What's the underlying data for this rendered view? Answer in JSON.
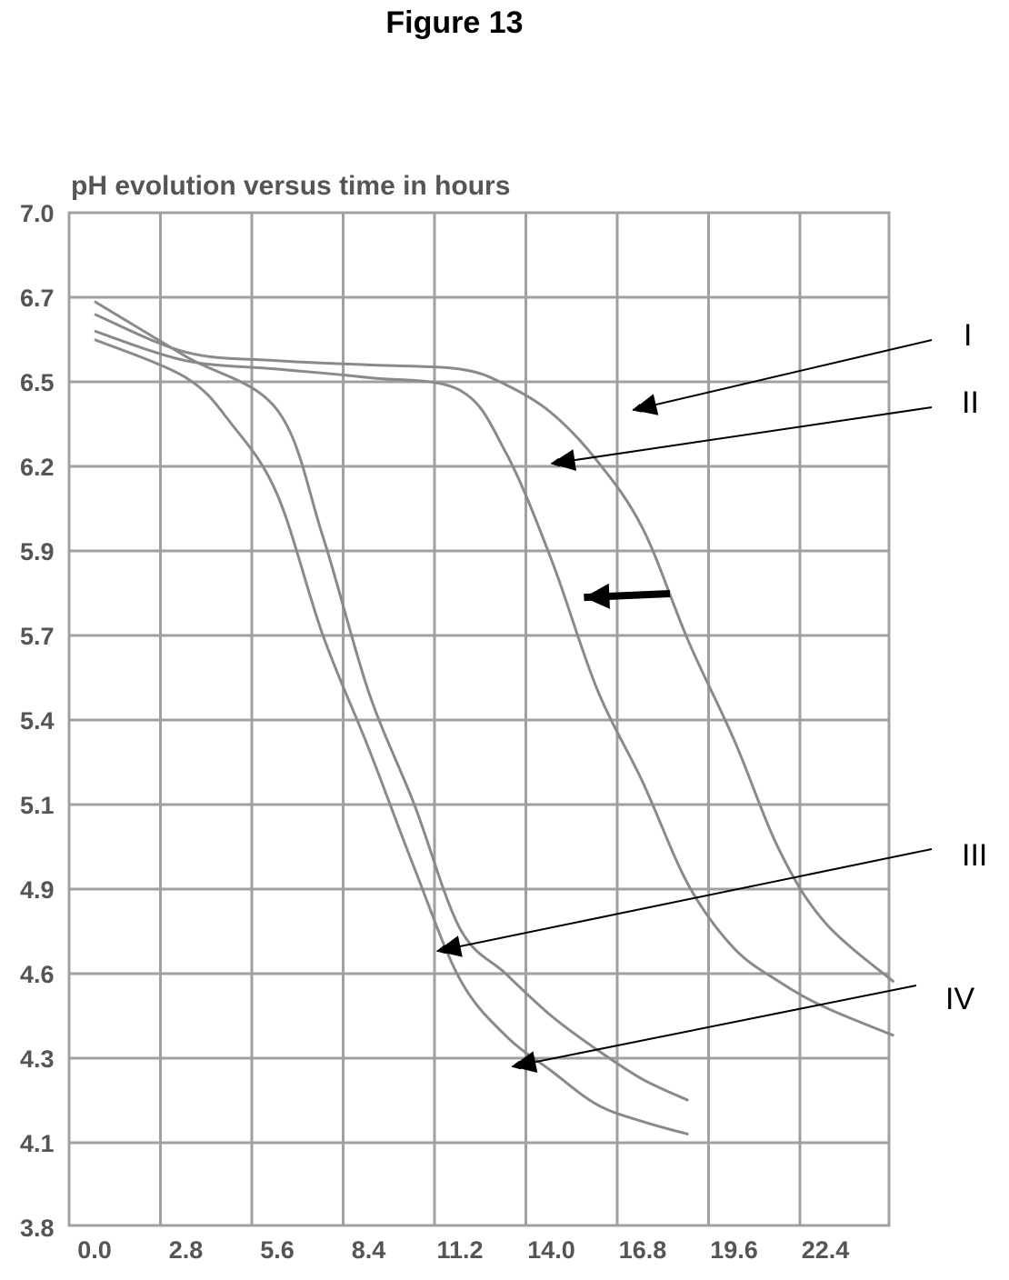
{
  "figure_title": "Figure 13",
  "chart_data": {
    "type": "line",
    "title": "pH evolution versus time in hours",
    "xlabel": "",
    "ylabel": "",
    "x_ticks": [
      "0.0",
      "2.8",
      "5.6",
      "8.4",
      "11.2",
      "14.0",
      "16.8",
      "19.6",
      "22.4"
    ],
    "y_ticks": [
      "7.0",
      "6.7",
      "6.5",
      "6.2",
      "5.9",
      "5.7",
      "5.4",
      "5.1",
      "4.9",
      "4.6",
      "4.3",
      "4.1",
      "3.8"
    ],
    "grid": true,
    "colors": {
      "curve": "#8a8a8a",
      "grid": "#a0a0a0",
      "tick": "#555555",
      "arrow": "#000000"
    },
    "series": [
      {
        "label_on_chart": "I",
        "x": [
          0.0,
          2.8,
          5.6,
          8.4,
          11.2,
          12.6,
          14.0,
          15.4,
          16.8,
          18.2,
          19.6,
          21.0,
          22.4,
          24.5
        ],
        "y": [
          6.66,
          6.57,
          6.55,
          6.54,
          6.53,
          6.49,
          6.39,
          6.22,
          5.98,
          5.68,
          5.33,
          4.99,
          4.78,
          4.57
        ]
      },
      {
        "label_on_chart": "II",
        "x": [
          0.0,
          2.8,
          5.6,
          8.4,
          11.2,
          12.6,
          14.0,
          15.4,
          16.8,
          18.2,
          19.6,
          21.0,
          22.4,
          24.5
        ],
        "y": [
          6.62,
          6.55,
          6.53,
          6.51,
          6.47,
          6.25,
          5.88,
          5.51,
          5.18,
          4.91,
          4.69,
          4.57,
          4.48,
          4.38
        ]
      },
      {
        "label_on_chart": "III",
        "x": [
          0.0,
          2.8,
          5.6,
          7.0,
          8.4,
          9.8,
          11.2,
          12.6,
          14.0,
          15.4,
          16.8,
          18.2
        ],
        "y": [
          6.69,
          6.56,
          6.4,
          5.95,
          5.5,
          5.1,
          4.76,
          4.6,
          4.45,
          4.33,
          4.25,
          4.2
        ]
      },
      {
        "label_on_chart": "IV",
        "x": [
          0.0,
          2.8,
          4.2,
          5.6,
          7.0,
          8.4,
          9.8,
          11.2,
          12.6,
          14.0,
          15.4,
          16.8,
          18.2
        ],
        "y": [
          6.6,
          6.51,
          6.35,
          6.1,
          5.7,
          5.3,
          4.95,
          4.58,
          4.38,
          4.27,
          4.19,
          4.15,
          4.12
        ]
      }
    ],
    "annotations": [
      {
        "text": "I",
        "points_to": [
          16.5,
          6.4
        ]
      },
      {
        "text": "II",
        "points_to": [
          14.0,
          6.21
        ]
      },
      {
        "text": "III",
        "points_to": [
          10.5,
          4.68
        ]
      },
      {
        "text": "IV",
        "points_to": [
          12.8,
          4.28
        ]
      },
      {
        "text": "",
        "points_to": [
          15.0,
          5.79
        ],
        "style": "bold"
      }
    ]
  }
}
